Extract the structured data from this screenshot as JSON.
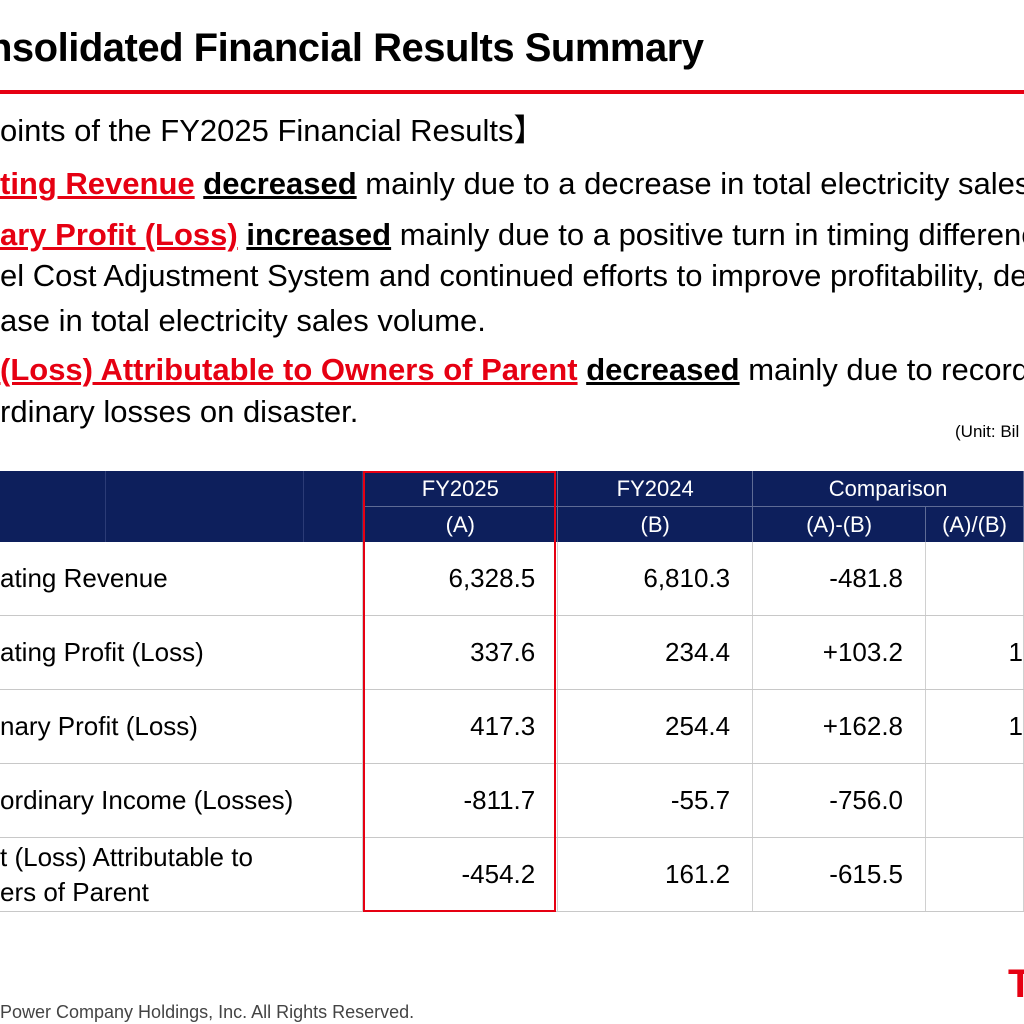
{
  "title": "nsolidated Financial Results Summary",
  "points": {
    "heading": "oints of the FY2025 Financial Results】",
    "line1": {
      "red": "ting Revenue",
      "bold": "decreased",
      "rest": " mainly due to a decrease in total electricity sales"
    },
    "line2": {
      "red": "ary Profit (Loss)",
      "bold": "increased",
      "rest": " mainly due to a positive turn in timing differenc"
    },
    "line3": "el Cost Adjustment System and continued efforts to improve profitability, de",
    "line4": "ase in total electricity sales volume.",
    "line5": {
      "red": "(Loss) Attributable to Owners of Parent",
      "bold": "decreased",
      "rest": " mainly due to record"
    },
    "line6": "rdinary losses on disaster."
  },
  "unit": "(Unit: Bil",
  "table": {
    "headers": {
      "fy2025": "FY2025",
      "fy2025_sub": "(A)",
      "fy2024": "FY2024",
      "fy2024_sub": "(B)",
      "comparison": "Comparison",
      "diff": "(A)-(B)",
      "ratio": "(A)/(B)"
    },
    "rows": [
      {
        "label": "ating Revenue",
        "fy2025": "6,328.5",
        "fy2024": "6,810.3",
        "diff": "-481.8",
        "ratio": ""
      },
      {
        "label": "ating Profit (Loss)",
        "fy2025": "337.6",
        "fy2024": "234.4",
        "diff": "+103.2",
        "ratio": "1"
      },
      {
        "label": "nary Profit (Loss)",
        "fy2025": "417.3",
        "fy2024": "254.4",
        "diff": "+162.8",
        "ratio": "1"
      },
      {
        "label": "ordinary Income (Losses)",
        "fy2025": "-811.7",
        "fy2024": "-55.7",
        "diff": "-756.0",
        "ratio": ""
      },
      {
        "label": "t (Loss) Attributable to",
        "label2": "ers of Parent",
        "fy2025": "-454.2",
        "fy2024": "161.2",
        "diff": "-615.5",
        "ratio": ""
      }
    ]
  },
  "footer": "Power Company Holdings, Inc. All Rights Reserved.",
  "logo": "T",
  "colors": {
    "accent": "#e60012",
    "header_bg": "#0d1f5c"
  }
}
